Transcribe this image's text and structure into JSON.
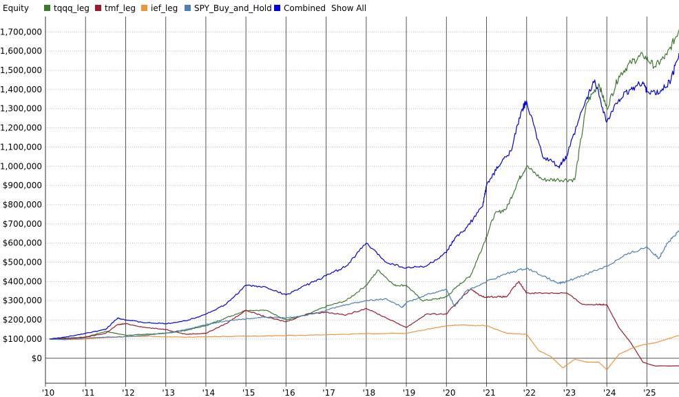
{
  "legend": {
    "title": "Equity",
    "show_all": "Show All",
    "items": [
      {
        "name": "tqqq_leg",
        "color": "#3d7a2e"
      },
      {
        "name": "tmf_leg",
        "color": "#9b1b2a"
      },
      {
        "name": "ief_leg",
        "color": "#f0943a"
      },
      {
        "name": "SPY_Buy_and_Hold",
        "color": "#4a7fb5"
      },
      {
        "name": "Combined",
        "color": "#0000e0"
      }
    ]
  },
  "chart_data": {
    "type": "line",
    "ylim": [
      -130000,
      1780000
    ],
    "xlim": [
      2010.0,
      2025.8
    ],
    "y_ticks": [
      0,
      100000,
      200000,
      300000,
      400000,
      500000,
      600000,
      700000,
      800000,
      900000,
      1000000,
      1100000,
      1200000,
      1300000,
      1400000,
      1500000,
      1600000,
      1700000
    ],
    "y_tick_labels": [
      "$0",
      "$100,000",
      "$200,000",
      "$300,000",
      "$400,000",
      "$500,000",
      "$600,000",
      "$700,000",
      "$800,000",
      "$900,000",
      "$1,000,000",
      "$1,100,000",
      "$1,200,000",
      "$1,300,000",
      "$1,400,000",
      "$1,500,000",
      "$1,600,000",
      "$1,700,000"
    ],
    "x_ticks": [
      2010,
      2011,
      2012,
      2013,
      2014,
      2015,
      2016,
      2017,
      2018,
      2019,
      2020,
      2021,
      2022,
      2023,
      2024,
      2025
    ],
    "x_tick_labels": [
      "'10",
      "'11",
      "'12",
      "'13",
      "'14",
      "'15",
      "'16",
      "'17",
      "'18",
      "'19",
      "'20",
      "'21",
      "'22",
      "'23",
      "'24",
      "'25"
    ],
    "grid": {
      "horizontal": true,
      "vertical": true
    },
    "legend_position": "top-left",
    "series": [
      {
        "name": "tqqq_leg",
        "color": "#3d7a2e",
        "x": [
          2010.1,
          2010.5,
          2011.0,
          2011.5,
          2012.0,
          2012.5,
          2013.0,
          2013.5,
          2014.0,
          2014.5,
          2015.0,
          2015.5,
          2016.0,
          2016.5,
          2017.0,
          2017.5,
          2018.0,
          2018.3,
          2018.7,
          2019.0,
          2019.4,
          2019.8,
          2020.0,
          2020.3,
          2020.6,
          2020.9,
          2021.2,
          2021.5,
          2021.8,
          2022.0,
          2022.4,
          2022.8,
          2023.2,
          2023.5,
          2023.8,
          2024.0,
          2024.3,
          2024.6,
          2024.9,
          2025.2,
          2025.5,
          2025.8
        ],
        "values": [
          100000,
          105000,
          110000,
          140000,
          120000,
          125000,
          130000,
          145000,
          170000,
          210000,
          250000,
          250000,
          200000,
          225000,
          270000,
          300000,
          380000,
          460000,
          380000,
          380000,
          300000,
          310000,
          320000,
          380000,
          430000,
          580000,
          750000,
          780000,
          930000,
          1000000,
          930000,
          930000,
          930000,
          1330000,
          1430000,
          1300000,
          1470000,
          1540000,
          1580000,
          1520000,
          1580000,
          1710000
        ]
      },
      {
        "name": "tmf_leg",
        "color": "#9b1b2a",
        "x": [
          2010.1,
          2010.5,
          2011.0,
          2011.5,
          2011.8,
          2012.0,
          2012.5,
          2013.0,
          2013.5,
          2014.0,
          2014.5,
          2015.0,
          2015.5,
          2016.0,
          2016.5,
          2017.0,
          2017.5,
          2018.0,
          2018.5,
          2019.0,
          2019.5,
          2020.0,
          2020.3,
          2020.6,
          2020.9,
          2021.2,
          2021.5,
          2021.8,
          2022.0,
          2022.5,
          2023.0,
          2023.4,
          2023.8,
          2024.0,
          2024.3,
          2024.6,
          2024.9,
          2025.2,
          2025.8
        ],
        "values": [
          100000,
          102000,
          110000,
          130000,
          175000,
          180000,
          160000,
          150000,
          125000,
          130000,
          180000,
          250000,
          215000,
          190000,
          230000,
          240000,
          225000,
          260000,
          210000,
          160000,
          230000,
          230000,
          300000,
          360000,
          320000,
          320000,
          320000,
          400000,
          340000,
          340000,
          340000,
          280000,
          280000,
          280000,
          160000,
          80000,
          -20000,
          -40000,
          -40000
        ]
      },
      {
        "name": "ief_leg",
        "color": "#f0943a",
        "x": [
          2010.1,
          2010.5,
          2011.0,
          2011.5,
          2012.0,
          2012.5,
          2013.0,
          2013.5,
          2014.0,
          2015.0,
          2016.0,
          2017.0,
          2018.0,
          2019.0,
          2019.5,
          2020.0,
          2020.5,
          2021.0,
          2021.5,
          2022.0,
          2022.3,
          2022.6,
          2022.9,
          2023.2,
          2023.5,
          2023.8,
          2024.0,
          2024.3,
          2024.6,
          2024.9,
          2025.2,
          2025.5,
          2025.8
        ],
        "values": [
          100000,
          98000,
          100000,
          108000,
          112000,
          114000,
          112000,
          110000,
          112000,
          115000,
          118000,
          122000,
          128000,
          130000,
          150000,
          170000,
          172000,
          170000,
          130000,
          125000,
          40000,
          10000,
          -50000,
          -5000,
          -20000,
          -20000,
          -60000,
          20000,
          50000,
          70000,
          80000,
          100000,
          118000
        ]
      },
      {
        "name": "SPY_Buy_and_Hold",
        "color": "#4a7fb5",
        "x": [
          2010.1,
          2010.5,
          2011.0,
          2011.5,
          2012.0,
          2012.5,
          2013.0,
          2013.5,
          2014.0,
          2014.5,
          2015.0,
          2015.5,
          2016.0,
          2016.5,
          2017.0,
          2017.5,
          2018.0,
          2018.5,
          2018.9,
          2019.0,
          2019.5,
          2020.0,
          2020.2,
          2020.5,
          2021.0,
          2021.5,
          2022.0,
          2022.5,
          2022.8,
          2023.0,
          2023.5,
          2024.0,
          2024.5,
          2025.0,
          2025.3,
          2025.5,
          2025.8
        ],
        "values": [
          100000,
          97000,
          105000,
          110000,
          112000,
          120000,
          130000,
          150000,
          175000,
          195000,
          205000,
          215000,
          210000,
          225000,
          250000,
          280000,
          300000,
          310000,
          265000,
          290000,
          330000,
          360000,
          270000,
          350000,
          400000,
          440000,
          470000,
          420000,
          390000,
          400000,
          440000,
          480000,
          540000,
          580000,
          520000,
          600000,
          660000
        ]
      },
      {
        "name": "Combined",
        "color": "#0000e0",
        "x": [
          2010.1,
          2010.5,
          2011.0,
          2011.5,
          2011.8,
          2012.0,
          2012.5,
          2013.0,
          2013.5,
          2014.0,
          2014.5,
          2015.0,
          2015.5,
          2016.0,
          2016.5,
          2017.0,
          2017.5,
          2018.0,
          2018.5,
          2019.0,
          2019.5,
          2020.0,
          2020.2,
          2020.5,
          2020.9,
          2021.0,
          2021.3,
          2021.6,
          2021.9,
          2022.0,
          2022.4,
          2022.8,
          2023.0,
          2023.4,
          2023.7,
          2024.0,
          2024.3,
          2024.6,
          2024.9,
          2025.0,
          2025.3,
          2025.6,
          2025.8
        ],
        "values": [
          100000,
          110000,
          130000,
          150000,
          210000,
          200000,
          185000,
          180000,
          195000,
          230000,
          280000,
          380000,
          370000,
          330000,
          380000,
          430000,
          480000,
          600000,
          500000,
          470000,
          480000,
          550000,
          620000,
          680000,
          790000,
          900000,
          1000000,
          1080000,
          1300000,
          1340000,
          1050000,
          1000000,
          1050000,
          1300000,
          1450000,
          1230000,
          1350000,
          1400000,
          1440000,
          1390000,
          1380000,
          1450000,
          1590000
        ]
      }
    ]
  }
}
